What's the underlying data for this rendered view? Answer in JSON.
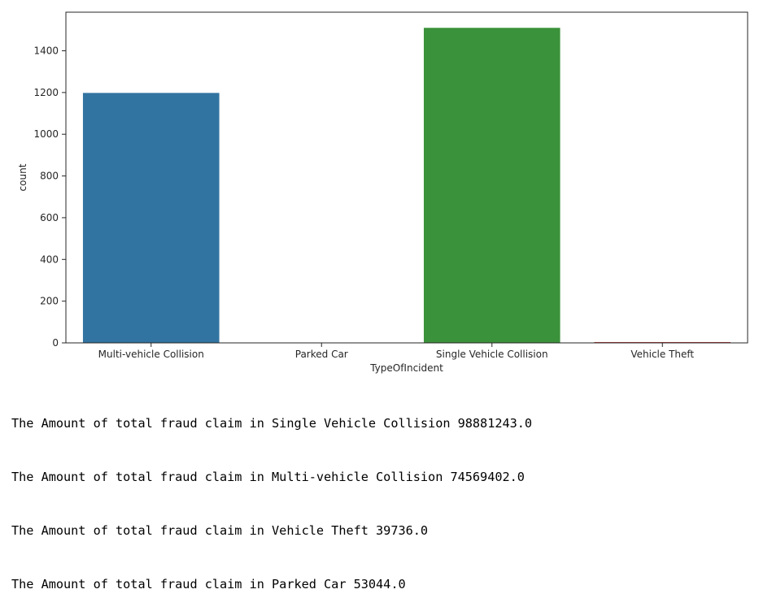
{
  "chart_data": {
    "type": "bar",
    "categories": [
      "Multi-vehicle Collision",
      "Parked Car",
      "Single Vehicle Collision",
      "Vehicle Theft"
    ],
    "values": [
      1198,
      0,
      1510,
      4
    ],
    "colors": [
      "#3274a1",
      "#e1812c",
      "#3a923a",
      "#c03d3e"
    ],
    "xlabel": "TypeOfIncident",
    "ylabel": "count",
    "ylim": [
      0,
      1585
    ],
    "yticks": [
      0,
      200,
      400,
      600,
      800,
      1000,
      1200,
      1400
    ],
    "grid": false
  },
  "output_lines": [
    "The Amount of total fraud claim in Single Vehicle Collision 98881243.0",
    "The Amount of total fraud claim in Multi-vehicle Collision 74569402.0",
    "The Amount of total fraud claim in Vehicle Theft 39736.0",
    "The Amount of total fraud claim in Parked Car 53044.0"
  ]
}
